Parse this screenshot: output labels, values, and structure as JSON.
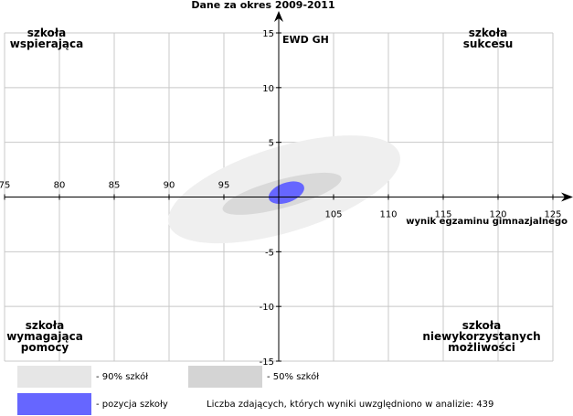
{
  "chart_data": {
    "type": "scatter",
    "title": "Dane za okres 2009-2011",
    "xlabel": "wynik egzaminu gimnazjalnego",
    "ylabel": "EWD GH",
    "xlim": [
      75,
      125
    ],
    "ylim": [
      -15,
      15
    ],
    "x_ticks": [
      75,
      80,
      85,
      90,
      95,
      105,
      110,
      115,
      120,
      125
    ],
    "y_ticks": [
      15,
      10,
      5,
      -5,
      -10,
      -15
    ],
    "grid": true,
    "quadrant_labels": {
      "top_left": [
        "szkoła",
        "wspierająca"
      ],
      "top_right": [
        "szkoła",
        "sukcesu"
      ],
      "bottom_left": [
        "szkoła",
        "wymagająca",
        "pomocy"
      ],
      "bottom_right": [
        "szkoła",
        "niewykorzystanych",
        "możliwości"
      ]
    },
    "ellipses": [
      {
        "name": "- 90% szkół",
        "center": [
          100.5,
          0.7
        ],
        "half_width_x": 11,
        "half_height_y": 3.9,
        "rotation_deg": -17,
        "color": "#efefef"
      },
      {
        "name": "- 50% szkół",
        "center": [
          100.3,
          0.3
        ],
        "half_width_x": 5.6,
        "half_height_y": 1.3,
        "rotation_deg": -15,
        "color": "#d9d9d9"
      },
      {
        "name": "- pozycja szkoły",
        "center": [
          100.7,
          0.4
        ],
        "half_width_x": 1.7,
        "half_height_y": 0.9,
        "rotation_deg": -20,
        "color": "#6666ff"
      }
    ],
    "legend": [
      {
        "label": "- 90% szkół",
        "color": "#e6e6e6"
      },
      {
        "label": "- 50% szkół",
        "color": "#d4d4d4"
      },
      {
        "label": "- pozycja szkoły",
        "color": "#6666ff"
      }
    ],
    "note": "Liczba zdających, których wyniki uwzględniono w analizie: 439"
  }
}
